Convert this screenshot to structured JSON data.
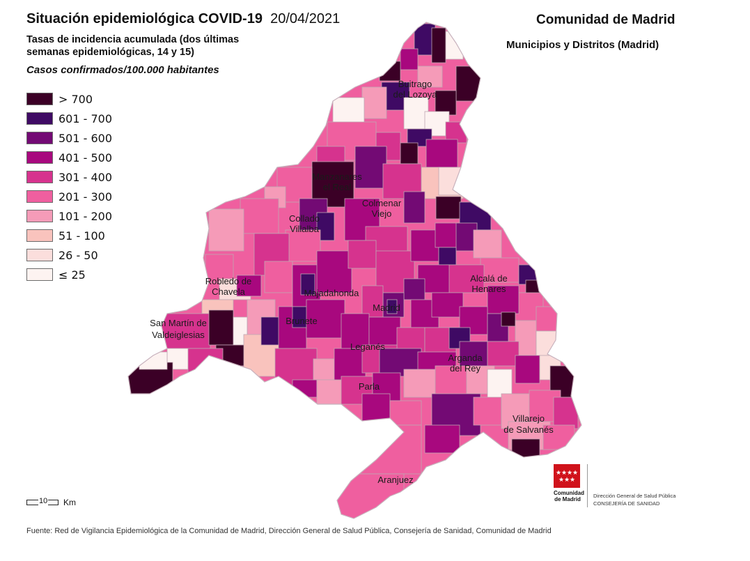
{
  "header": {
    "title_main": "Situación epidemiológica COVID-19",
    "title_date": "20/04/2021",
    "subtitle": "Tasas de incidencia acumulada (dos últimas semanas epidemiológicas, 14 y 15)",
    "units": "Casos confirmados/100.000 habitantes",
    "region": "Comunidad de Madrid",
    "scope": "Municipios y Distritos (Madrid)"
  },
  "legend": [
    {
      "label": "> 700",
      "color": "#3b0026"
    },
    {
      "label": "601 - 700",
      "color": "#3f0a64"
    },
    {
      "label": "501 - 600",
      "color": "#730a74"
    },
    {
      "label": "401 - 500",
      "color": "#a8087e"
    },
    {
      "label": "301 - 400",
      "color": "#d6338e"
    },
    {
      "label": "201 - 300",
      "color": "#ef5f9f"
    },
    {
      "label": "101 - 200",
      "color": "#f59bb8"
    },
    {
      "label": "51 - 100",
      "color": "#f9c3bd"
    },
    {
      "label": "26 - 50",
      "color": "#fbdedc"
    },
    {
      "label": "≤ 25",
      "color": "#fdf3f1"
    }
  ],
  "places": [
    {
      "name": "Buitrago",
      "sub": "del Lozoya"
    },
    {
      "name": "Manzanares",
      "sub": "el Real"
    },
    {
      "name": "Colmenar",
      "sub": "Viejo"
    },
    {
      "name": "Collado",
      "sub": "Villalba"
    },
    {
      "name": "Robledo de",
      "sub": "Chavela"
    },
    {
      "name": "Majadahonda",
      "sub": ""
    },
    {
      "name": "Alcalá de",
      "sub": "Henares"
    },
    {
      "name": "San Martín de",
      "sub": "Valdeiglesias"
    },
    {
      "name": "Brunete",
      "sub": ""
    },
    {
      "name": "Madrid",
      "sub": ""
    },
    {
      "name": "Leganés",
      "sub": ""
    },
    {
      "name": "Arganda",
      "sub": "del Rey"
    },
    {
      "name": "Parla",
      "sub": ""
    },
    {
      "name": "Villarejo",
      "sub": "de Salvanés"
    },
    {
      "name": "Aranjuez",
      "sub": ""
    }
  ],
  "scale": {
    "value": "10",
    "unit": "Km"
  },
  "logo": {
    "name_line1": "Comunidad",
    "name_line2": "de Madrid",
    "dept_line1": "Dirección General de Salud Pública",
    "dept_line2": "CONSEJERÍA DE SANIDAD"
  },
  "source": "Fuente: Red de Vigilancia Epidemiológica de la Comunidad de Madrid, Dirección General de Salud Pública, Consejería de Sanidad, Comunidad de Madrid",
  "colors": {
    "border": "#bfa7b2",
    "background": "#ffffff",
    "flag_red": "#d0121b"
  }
}
